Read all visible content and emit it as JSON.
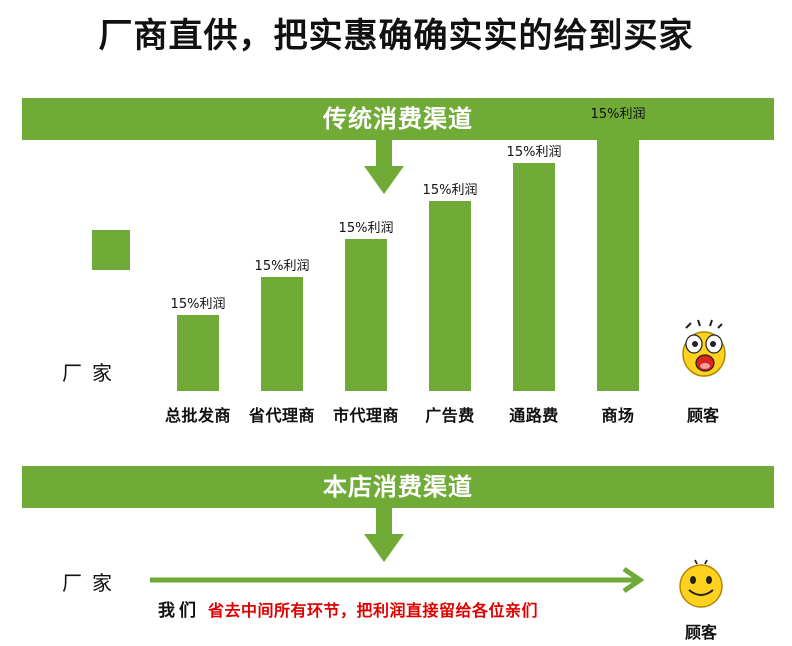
{
  "title": "厂商直供，把实惠确确实实的给到买家",
  "traditional": {
    "band_label": "传统消费渠道",
    "factory_label": "厂家",
    "customer_label": "顾客",
    "chart_data": {
      "type": "bar",
      "categories": [
        "总批发商",
        "省代理商",
        "市代理商",
        "广告费",
        "通路费",
        "商场"
      ],
      "values": [
        1,
        2,
        3,
        4,
        5,
        6
      ],
      "data_labels": [
        "15%利润",
        "15%利润",
        "15%利润",
        "15%利润",
        "15%利润",
        "15%利润"
      ]
    }
  },
  "store": {
    "band_label": "本店消费渠道",
    "factory_label": "厂家",
    "customer_label": "顾客",
    "we_label": "我们",
    "note": "省去中间所有环节，把利润直接留给各位亲们"
  },
  "colors": {
    "band": "#70aa37",
    "bar": "#70aa37",
    "highlight": "#e10000",
    "face": "#ffd21f"
  },
  "icons": {
    "down_arrow": "down-arrow-icon",
    "right_arrow": "right-arrow-icon",
    "shocked_face": "shocked-face-icon",
    "smiley_face": "smiley-face-icon"
  }
}
